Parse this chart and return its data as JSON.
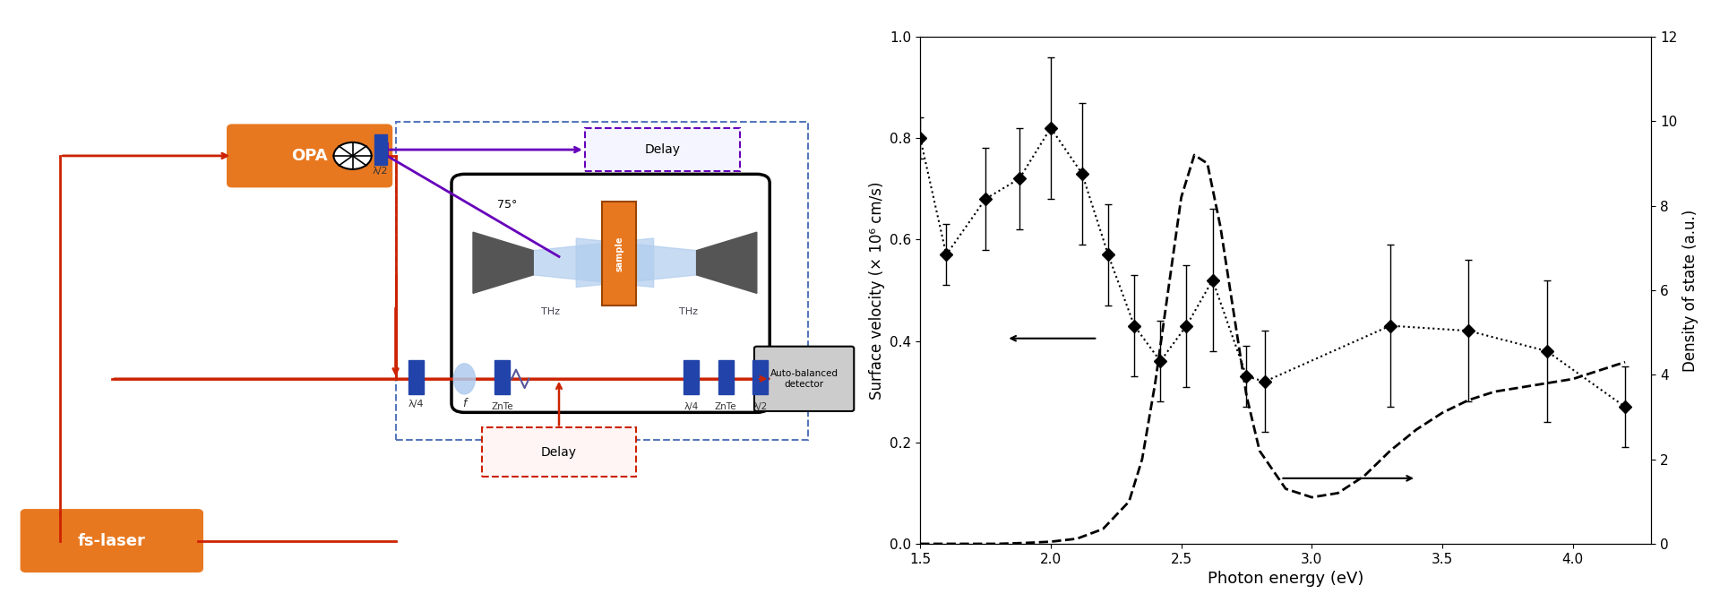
{
  "surface_velocity_x": [
    1.5,
    1.6,
    1.75,
    1.88,
    2.0,
    2.12,
    2.22,
    2.32,
    2.42,
    2.52,
    2.62,
    2.75,
    2.82,
    3.3,
    3.6,
    3.9,
    4.2
  ],
  "surface_velocity_y": [
    0.8,
    0.57,
    0.68,
    0.72,
    0.82,
    0.73,
    0.57,
    0.43,
    0.36,
    0.43,
    0.52,
    0.33,
    0.32,
    0.43,
    0.42,
    0.38,
    0.27
  ],
  "surface_velocity_yerr": [
    0.04,
    0.06,
    0.1,
    0.1,
    0.14,
    0.14,
    0.1,
    0.1,
    0.08,
    0.12,
    0.14,
    0.06,
    0.1,
    0.16,
    0.14,
    0.14,
    0.08
  ],
  "dashed_x": [
    1.5,
    1.6,
    1.7,
    1.8,
    1.9,
    2.0,
    2.1,
    2.2,
    2.3,
    2.35,
    2.4,
    2.45,
    2.5,
    2.55,
    2.6,
    2.65,
    2.7,
    2.75,
    2.8,
    2.9,
    3.0,
    3.1,
    3.2,
    3.3,
    3.4,
    3.5,
    3.6,
    3.7,
    3.8,
    3.9,
    4.0,
    4.1,
    4.2
  ],
  "dashed_y": [
    0.0,
    0.0,
    0.0,
    0.0,
    0.02,
    0.05,
    0.12,
    0.35,
    1.0,
    2.0,
    3.8,
    6.0,
    8.2,
    9.2,
    9.0,
    7.5,
    5.5,
    3.5,
    2.2,
    1.3,
    1.1,
    1.2,
    1.6,
    2.2,
    2.7,
    3.1,
    3.4,
    3.6,
    3.7,
    3.8,
    3.9,
    4.1,
    4.3
  ],
  "xlim": [
    1.5,
    4.3
  ],
  "ylim_left": [
    0,
    1.0
  ],
  "ylim_right": [
    0,
    12
  ],
  "xlabel": "Photon energy (eV)",
  "ylabel_left": "Surface velocity (× 10⁶ cm/s)",
  "ylabel_right": "Density of state (a.u.)",
  "xticks": [
    1.5,
    2.0,
    2.5,
    3.0,
    3.5,
    4.0
  ],
  "yticks_left": [
    0,
    0.2,
    0.4,
    0.6,
    0.8,
    1.0
  ],
  "yticks_right": [
    0,
    2,
    4,
    6,
    8,
    10,
    12
  ],
  "red": "#CC2200",
  "orange": "#E87820",
  "purple": "#6600BB",
  "blue_dark": "#2244AA",
  "blue_mid": "#5577BB",
  "blue_light": "#B0CCEE",
  "black": "#000000",
  "diagram_bg": "#FFFFFF"
}
